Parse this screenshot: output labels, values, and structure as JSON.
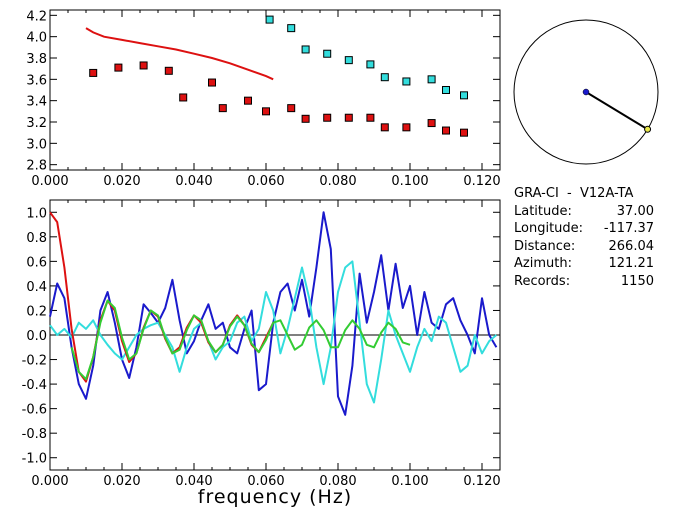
{
  "info": {
    "title": "GRA-CI  -  V12A-TA",
    "rows": [
      {
        "label": "Latitude:",
        "value": "37.00"
      },
      {
        "label": "Longitude:",
        "value": "-117.37"
      },
      {
        "label": "Distance:",
        "value": "266.04"
      },
      {
        "label": "Azimuth:",
        "value": "121.21"
      },
      {
        "label": "Records:",
        "value": "1150"
      }
    ]
  },
  "chart_data": [
    {
      "type": "scatter",
      "xlim": [
        0.0,
        0.125
      ],
      "ylim": [
        2.75,
        4.25
      ],
      "x_ticks": [
        "0.000",
        "0.020",
        "0.040",
        "0.060",
        "0.080",
        "0.100",
        "0.120"
      ],
      "y_ticks": [
        "2.8",
        "3.0",
        "3.2",
        "3.4",
        "3.6",
        "3.8",
        "4.0",
        "4.2"
      ],
      "colors": {
        "red_points": "#dd1111",
        "cyan_points": "#33dddd",
        "curve": "#dd1111"
      },
      "series": [
        {
          "marker": "square",
          "color": "#dd1111",
          "x": [
            0.012,
            0.019,
            0.026,
            0.033,
            0.037,
            0.045,
            0.048,
            0.055,
            0.06,
            0.067,
            0.071,
            0.077,
            0.083,
            0.089,
            0.093,
            0.099,
            0.106,
            0.11,
            0.115
          ],
          "y": [
            3.66,
            3.71,
            3.73,
            3.68,
            3.43,
            3.57,
            3.33,
            3.4,
            3.3,
            3.33,
            3.23,
            3.24,
            3.24,
            3.24,
            3.15,
            3.15,
            3.19,
            3.12,
            3.1
          ]
        },
        {
          "marker": "square",
          "color": "#33dddd",
          "x": [
            0.061,
            0.067,
            0.071,
            0.077,
            0.083,
            0.089,
            0.093,
            0.099,
            0.106,
            0.11,
            0.115
          ],
          "y": [
            4.16,
            4.08,
            3.88,
            3.84,
            3.78,
            3.74,
            3.62,
            3.58,
            3.6,
            3.5,
            3.45
          ]
        },
        {
          "line": true,
          "color": "#dd1111",
          "x": [
            0.01,
            0.012,
            0.015,
            0.02,
            0.025,
            0.03,
            0.035,
            0.04,
            0.045,
            0.05,
            0.055,
            0.06,
            0.062
          ],
          "y": [
            4.08,
            4.04,
            4.0,
            3.97,
            3.94,
            3.91,
            3.88,
            3.84,
            3.8,
            3.75,
            3.69,
            3.63,
            3.6
          ]
        }
      ]
    },
    {
      "type": "line",
      "xlabel": "frequency (Hz)",
      "xlim": [
        0.0,
        0.125
      ],
      "ylim": [
        -1.1,
        1.1
      ],
      "x_ticks": [
        "0.000",
        "0.020",
        "0.040",
        "0.060",
        "0.080",
        "0.100",
        "0.120"
      ],
      "y_ticks": [
        "1.0",
        "0.8",
        "0.6",
        "0.4",
        "0.2",
        "0.0",
        "-0.2",
        "-0.4",
        "-0.6",
        "-0.8",
        "-1.0"
      ],
      "series": [
        {
          "color": "#1a1acc",
          "x": [
            0.0,
            0.002,
            0.004,
            0.006,
            0.008,
            0.01,
            0.012,
            0.014,
            0.016,
            0.018,
            0.02,
            0.022,
            0.024,
            0.026,
            0.028,
            0.03,
            0.032,
            0.034,
            0.036,
            0.038,
            0.04,
            0.042,
            0.044,
            0.046,
            0.048,
            0.05,
            0.052,
            0.054,
            0.056,
            0.058,
            0.06,
            0.062,
            0.064,
            0.066,
            0.068,
            0.07,
            0.072,
            0.074,
            0.076,
            0.078,
            0.08,
            0.082,
            0.084,
            0.086,
            0.088,
            0.09,
            0.092,
            0.094,
            0.096,
            0.098,
            0.1,
            0.102,
            0.104,
            0.106,
            0.108,
            0.11,
            0.112,
            0.114,
            0.116,
            0.118,
            0.12,
            0.122,
            0.124
          ],
          "y": [
            0.15,
            0.42,
            0.3,
            -0.1,
            -0.4,
            -0.52,
            -0.25,
            0.2,
            0.35,
            0.1,
            -0.2,
            -0.35,
            -0.1,
            0.25,
            0.18,
            0.1,
            0.22,
            0.45,
            0.12,
            -0.15,
            -0.05,
            0.12,
            0.25,
            0.05,
            0.1,
            -0.1,
            -0.15,
            0.05,
            0.2,
            -0.45,
            -0.4,
            0.1,
            0.35,
            0.42,
            0.2,
            0.45,
            0.15,
            0.55,
            1.0,
            0.7,
            -0.5,
            -0.65,
            -0.25,
            0.5,
            0.1,
            0.35,
            0.65,
            0.2,
            0.58,
            0.22,
            0.4,
            0.0,
            0.35,
            0.1,
            0.05,
            0.25,
            0.3,
            0.12,
            0.0,
            -0.15,
            0.3,
            0.0,
            -0.1
          ]
        },
        {
          "color": "#33dddd",
          "x": [
            0.0,
            0.002,
            0.004,
            0.006,
            0.008,
            0.01,
            0.012,
            0.014,
            0.016,
            0.018,
            0.02,
            0.022,
            0.024,
            0.026,
            0.028,
            0.03,
            0.032,
            0.034,
            0.036,
            0.038,
            0.04,
            0.042,
            0.044,
            0.046,
            0.048,
            0.05,
            0.052,
            0.054,
            0.056,
            0.058,
            0.06,
            0.062,
            0.064,
            0.066,
            0.068,
            0.07,
            0.072,
            0.074,
            0.076,
            0.078,
            0.08,
            0.082,
            0.084,
            0.086,
            0.088,
            0.09,
            0.092,
            0.094,
            0.096,
            0.098,
            0.1,
            0.102,
            0.104,
            0.106,
            0.108,
            0.11,
            0.112,
            0.114,
            0.116,
            0.118,
            0.12,
            0.122,
            0.124
          ],
          "y": [
            0.08,
            0.0,
            0.05,
            -0.02,
            0.1,
            0.05,
            0.12,
            0.0,
            -0.08,
            -0.15,
            -0.2,
            -0.1,
            0.0,
            0.05,
            0.08,
            0.1,
            0.0,
            -0.1,
            -0.3,
            -0.1,
            0.05,
            0.1,
            -0.05,
            -0.2,
            -0.1,
            -0.05,
            0.1,
            0.15,
            -0.05,
            0.05,
            0.35,
            0.2,
            -0.15,
            0.05,
            0.3,
            0.55,
            0.3,
            -0.1,
            -0.4,
            -0.1,
            0.35,
            0.55,
            0.6,
            0.1,
            -0.4,
            -0.55,
            -0.2,
            0.2,
            0.0,
            -0.15,
            -0.3,
            -0.1,
            0.05,
            -0.05,
            0.15,
            0.1,
            -0.1,
            -0.3,
            -0.25,
            0.0,
            -0.15,
            -0.05,
            0.0
          ]
        },
        {
          "color": "#dd1111",
          "x": [
            0.0,
            0.002,
            0.004,
            0.006,
            0.008,
            0.01,
            0.012,
            0.014,
            0.016,
            0.018,
            0.02,
            0.022,
            0.024,
            0.026,
            0.028,
            0.03,
            0.032,
            0.034,
            0.036,
            0.038,
            0.04,
            0.042,
            0.044,
            0.046,
            0.048,
            0.05,
            0.052,
            0.054,
            0.056,
            0.058,
            0.06,
            0.062
          ],
          "y": [
            1.0,
            0.92,
            0.55,
            0.05,
            -0.3,
            -0.38,
            -0.18,
            0.12,
            0.28,
            0.2,
            -0.05,
            -0.22,
            -0.15,
            0.06,
            0.2,
            0.15,
            -0.03,
            -0.15,
            -0.1,
            0.06,
            0.16,
            0.1,
            -0.06,
            -0.14,
            -0.08,
            0.08,
            0.16,
            0.08,
            -0.08,
            -0.14,
            -0.02,
            0.1
          ]
        },
        {
          "color": "#33cc33",
          "x": [
            0.006,
            0.008,
            0.01,
            0.012,
            0.014,
            0.016,
            0.018,
            0.02,
            0.022,
            0.024,
            0.026,
            0.028,
            0.03,
            0.032,
            0.034,
            0.036,
            0.038,
            0.04,
            0.042,
            0.044,
            0.046,
            0.048,
            0.05,
            0.052,
            0.054,
            0.056,
            0.058,
            0.06,
            0.062,
            0.064,
            0.066,
            0.068,
            0.07,
            0.072,
            0.074,
            0.076,
            0.078,
            0.08,
            0.082,
            0.084,
            0.086,
            0.088,
            0.09,
            0.092,
            0.094,
            0.096,
            0.098,
            0.1
          ],
          "y": [
            -0.1,
            -0.3,
            -0.36,
            -0.18,
            0.1,
            0.28,
            0.22,
            -0.02,
            -0.2,
            -0.15,
            0.05,
            0.2,
            0.16,
            -0.02,
            -0.15,
            -0.12,
            0.04,
            0.16,
            0.12,
            -0.05,
            -0.14,
            -0.08,
            0.07,
            0.15,
            0.08,
            -0.07,
            -0.14,
            -0.04,
            0.1,
            0.12,
            0.0,
            -0.12,
            -0.08,
            0.06,
            0.12,
            0.04,
            -0.1,
            -0.1,
            0.04,
            0.12,
            0.05,
            -0.08,
            -0.1,
            0.02,
            0.1,
            0.05,
            -0.06,
            -0.08
          ]
        }
      ]
    }
  ],
  "compass": {
    "azimuth_deg": 121.21,
    "circle_color": "#000000",
    "line_color": "#000000",
    "center_color": "#1a1acc",
    "tip_color": "#e8e84a"
  }
}
